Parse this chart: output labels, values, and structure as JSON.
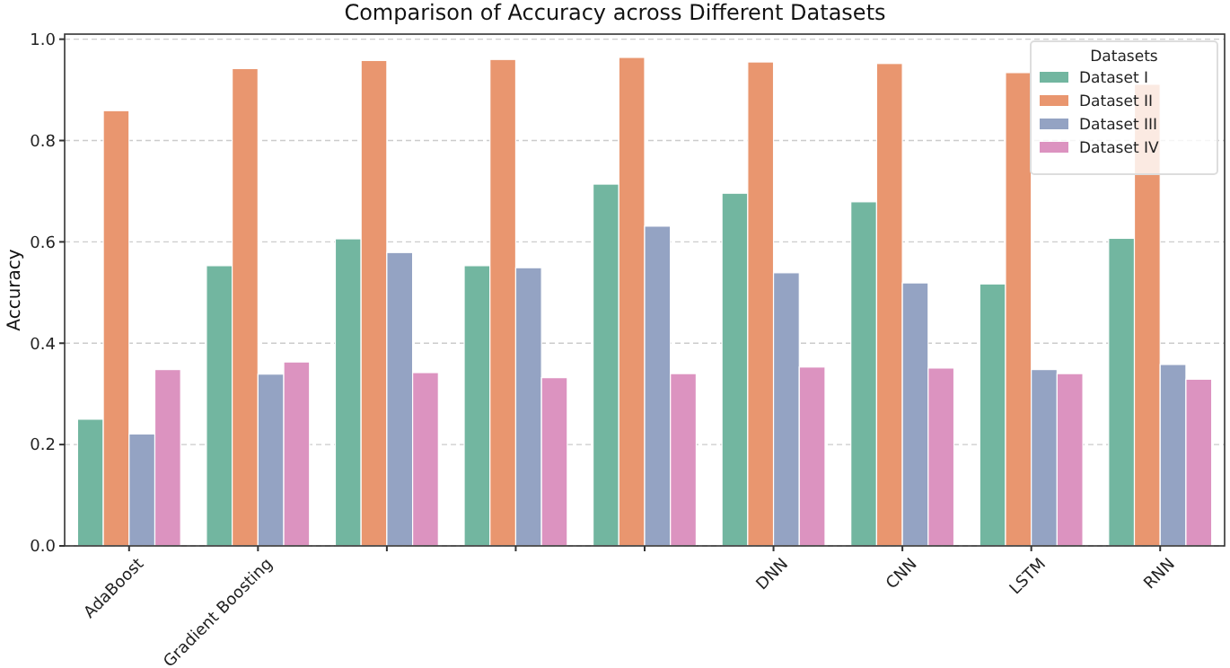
{
  "chart_data": {
    "type": "bar",
    "title": "Comparison of Accuracy across Different Datasets",
    "ylabel": "Accuracy",
    "legend_title": "Datasets",
    "categories": [
      "AdaBoost",
      "Gradient Boosting",
      null,
      null,
      null,
      "DNN",
      "CNN",
      "LSTM",
      "RNN"
    ],
    "series": [
      {
        "name": "Dataset I",
        "color": "#72b6a0",
        "values": [
          0.25,
          0.553,
          0.606,
          0.553,
          0.714,
          0.696,
          0.679,
          0.517,
          0.607
        ]
      },
      {
        "name": "Dataset II",
        "color": "#e9966f",
        "values": [
          0.859,
          0.942,
          0.958,
          0.96,
          0.964,
          0.955,
          0.952,
          0.934,
          0.911
        ]
      },
      {
        "name": "Dataset III",
        "color": "#94a3c3",
        "values": [
          0.221,
          0.339,
          0.579,
          0.549,
          0.631,
          0.539,
          0.519,
          0.348,
          0.358
        ]
      },
      {
        "name": "Dataset IV",
        "color": "#dc93c0",
        "values": [
          0.348,
          0.363,
          0.342,
          0.332,
          0.34,
          0.353,
          0.351,
          0.34,
          0.329
        ]
      }
    ],
    "ylim": [
      0,
      1.01
    ],
    "yticks": [
      {
        "value": 0,
        "label": "0.0"
      },
      {
        "value": 0.2,
        "label": "0.2"
      },
      {
        "value": 0.4,
        "label": "0.4"
      },
      {
        "value": 0.6,
        "label": "0.6"
      },
      {
        "value": 0.8,
        "label": "0.8"
      },
      {
        "value": 1,
        "label": "1.0"
      }
    ],
    "grid": "y",
    "legend": "top right"
  }
}
